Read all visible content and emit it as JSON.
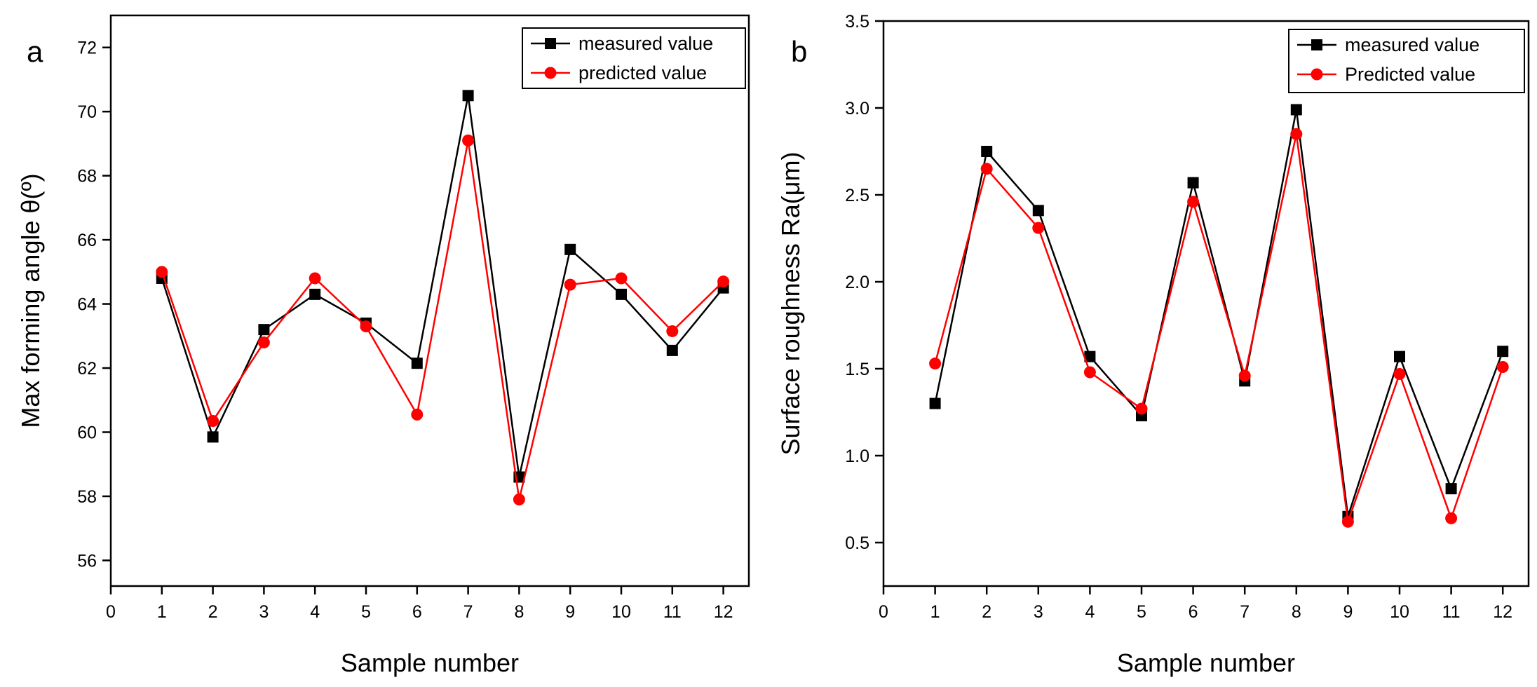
{
  "chart_data": [
    {
      "type": "line",
      "panel_label": "a",
      "xlabel": "Sample number",
      "ylabel": "Max forming angle θ(º)",
      "xlim": [
        0,
        12.5
      ],
      "ylim": [
        55.2,
        73.0
      ],
      "xticks": [
        0,
        1,
        2,
        3,
        4,
        5,
        6,
        7,
        8,
        9,
        10,
        11,
        12
      ],
      "yticks": [
        56,
        58,
        60,
        62,
        64,
        66,
        68,
        70,
        72
      ],
      "legend_position": "top-right",
      "grid": false,
      "x": [
        1,
        2,
        3,
        4,
        5,
        6,
        7,
        8,
        9,
        10,
        11,
        12
      ],
      "series": [
        {
          "name": "measured value",
          "color": "#000000",
          "marker": "square",
          "values": [
            64.8,
            59.85,
            63.2,
            64.3,
            63.4,
            62.15,
            70.5,
            58.6,
            65.7,
            64.3,
            62.55,
            64.5
          ]
        },
        {
          "name": "predicted value",
          "color": "#ff0000",
          "marker": "circle",
          "values": [
            65.0,
            60.35,
            62.8,
            64.8,
            63.3,
            60.55,
            69.1,
            57.9,
            64.6,
            64.8,
            63.15,
            64.7
          ]
        }
      ]
    },
    {
      "type": "line",
      "panel_label": "b",
      "xlabel": "Sample number",
      "ylabel": "Surface roughness Ra(μm)",
      "xlim": [
        0,
        12.5
      ],
      "ylim": [
        0.25,
        3.5
      ],
      "xticks": [
        0,
        1,
        2,
        3,
        4,
        5,
        6,
        7,
        8,
        9,
        10,
        11,
        12
      ],
      "yticks": [
        0.5,
        1.0,
        1.5,
        2.0,
        2.5,
        3.0,
        3.5
      ],
      "ytick_labels": [
        "0.5",
        "1.0",
        "1.5",
        "2.0",
        "2.5",
        "3.0",
        "3.5"
      ],
      "legend_position": "top-right",
      "grid": false,
      "x": [
        1,
        2,
        3,
        4,
        5,
        6,
        7,
        8,
        9,
        10,
        11,
        12
      ],
      "series": [
        {
          "name": "measured value",
          "color": "#000000",
          "marker": "square",
          "values": [
            1.3,
            2.75,
            2.41,
            1.57,
            1.23,
            2.57,
            1.43,
            2.99,
            0.65,
            1.57,
            0.81,
            1.6
          ]
        },
        {
          "name": "Predicted value",
          "color": "#ff0000",
          "marker": "circle",
          "values": [
            1.53,
            2.65,
            2.31,
            1.48,
            1.27,
            2.46,
            1.46,
            2.85,
            0.62,
            1.47,
            0.64,
            1.51
          ]
        }
      ]
    }
  ]
}
